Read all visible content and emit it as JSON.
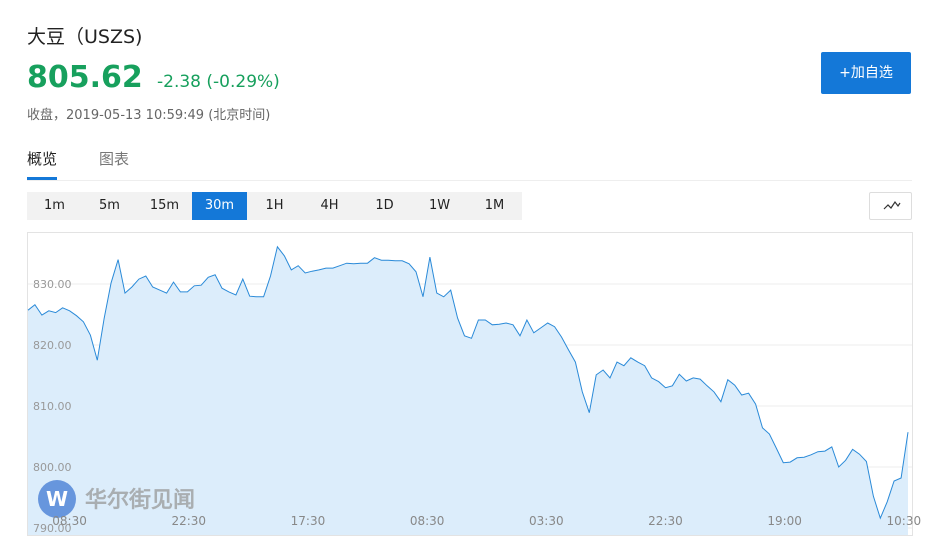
{
  "header": {
    "title": "大豆（USZS)",
    "price": "805.62",
    "change": "-2.38 (-0.29%)",
    "status": "收盘，2019-05-13 10:59:49 (北京时间)",
    "watch_button": "+加自选"
  },
  "tabs": [
    "概览",
    "图表"
  ],
  "active_tab": 0,
  "timeframes": [
    "1m",
    "5m",
    "15m",
    "30m",
    "1H",
    "4H",
    "1D",
    "1W",
    "1M"
  ],
  "active_timeframe": 3,
  "watermark": "华尔街见闻",
  "chart_data": {
    "type": "area",
    "color": "#2a8ad8",
    "fill": "#dcedfb",
    "grid": true,
    "values": [
      825.7,
      826.6,
      824.9,
      825.6,
      825.3,
      826.1,
      825.6,
      824.8,
      823.8,
      821.6,
      817.5,
      824.4,
      830.2,
      834.0,
      828.5,
      829.5,
      830.8,
      831.3,
      829.5,
      829.0,
      828.5,
      830.3,
      828.7,
      828.7,
      829.7,
      829.8,
      831.1,
      831.5,
      829.3,
      828.7,
      828.2,
      830.8,
      828.0,
      827.9,
      827.9,
      831.3,
      836.1,
      834.6,
      832.3,
      833.0,
      831.8,
      832.1,
      832.3,
      832.6,
      832.6,
      833.0,
      833.4,
      833.3,
      833.4,
      833.4,
      834.3,
      833.9,
      833.9,
      833.8,
      833.8,
      833.3,
      832.0,
      827.9,
      834.4,
      828.5,
      827.9,
      829.0,
      824.4,
      821.5,
      821.1,
      824.1,
      824.1,
      823.3,
      823.4,
      823.6,
      823.3,
      821.5,
      824.1,
      822.0,
      822.8,
      823.6,
      823.0,
      821.3,
      819.2,
      817.2,
      812.3,
      808.9,
      815.1,
      815.9,
      814.6,
      817.2,
      816.6,
      817.9,
      817.2,
      816.6,
      814.6,
      814.0,
      813.0,
      813.3,
      815.2,
      814.1,
      814.6,
      814.4,
      813.3,
      812.3,
      810.7,
      814.3,
      813.4,
      811.8,
      812.1,
      810.3,
      806.4,
      805.4,
      803.1,
      800.7,
      800.8,
      801.5,
      801.6,
      802.0,
      802.5,
      802.6,
      803.3,
      800.0,
      801.1,
      802.9,
      802.1,
      800.9,
      795.2,
      791.6,
      794.3,
      797.7,
      798.2,
      805.7
    ],
    "xlim": [
      0,
      127
    ],
    "xticks": [
      {
        "value": 6,
        "label": "08:30"
      },
      {
        "value": 23.2,
        "label": "22:30"
      },
      {
        "value": 40.4,
        "label": "17:30"
      },
      {
        "value": 57.6,
        "label": "08:30"
      },
      {
        "value": 74.8,
        "label": "03:30"
      },
      {
        "value": 92,
        "label": "22:30"
      },
      {
        "value": 109.2,
        "label": "19:00"
      },
      {
        "value": 126.4,
        "label": "10:30"
      }
    ],
    "ylim": [
      788.85,
      838.52
    ],
    "yticks": [
      {
        "value": 790,
        "label": "790.00"
      },
      {
        "value": 800,
        "label": "800.00"
      },
      {
        "value": 810,
        "label": "810.00"
      },
      {
        "value": 820,
        "label": "820.00"
      },
      {
        "value": 830,
        "label": "830.00"
      }
    ]
  }
}
